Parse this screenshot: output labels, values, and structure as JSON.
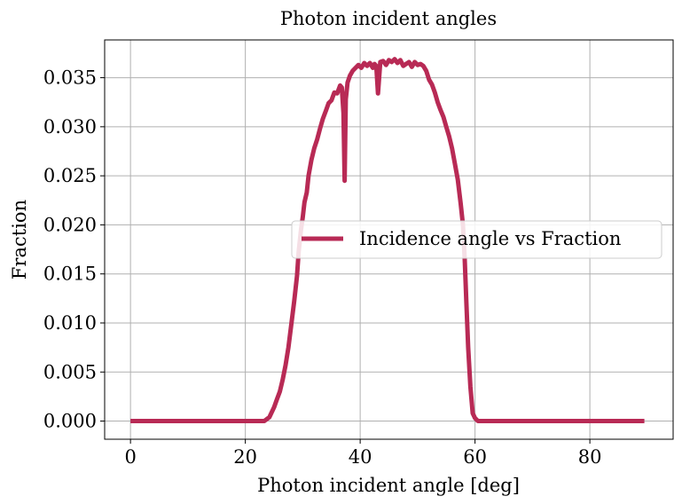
{
  "chart_data": {
    "type": "line",
    "title": "Photon incident angles",
    "xlabel": "Photon incident angle [deg]",
    "ylabel": "Fraction",
    "xlim": [
      -4.5,
      94.5
    ],
    "ylim": [
      -0.00185,
      0.03885
    ],
    "xticks": [
      0,
      20,
      40,
      60,
      80
    ],
    "xtick_labels": [
      "0",
      "20",
      "40",
      "60",
      "80"
    ],
    "yticks": [
      0,
      0.005,
      0.01,
      0.015,
      0.02,
      0.025,
      0.03,
      0.035
    ],
    "ytick_labels": [
      "0.000",
      "0.005",
      "0.010",
      "0.015",
      "0.020",
      "0.025",
      "0.030",
      "0.035"
    ],
    "grid": true,
    "legend_position": "center-right",
    "series": [
      {
        "name": "Incidence angle vs Fraction",
        "color": "#b82a55",
        "x": [
          0,
          5,
          10,
          15,
          20,
          23.3,
          24.2,
          24.6,
          25.0,
          25.5,
          26.0,
          26.5,
          27.0,
          27.5,
          28.0,
          28.5,
          29.0,
          29.3,
          29.7,
          30.0,
          30.3,
          30.7,
          31.0,
          31.5,
          32.0,
          32.5,
          33.0,
          33.5,
          34.0,
          34.5,
          35.0,
          35.5,
          36.0,
          36.5,
          36.8,
          37.1,
          37.3,
          37.5,
          37.8,
          38.2,
          38.7,
          39.2,
          39.7,
          40.2,
          40.7,
          41.2,
          41.7,
          42.2,
          42.5,
          42.8,
          43.1,
          43.5,
          44.0,
          44.5,
          45.0,
          45.5,
          46.0,
          46.5,
          47.0,
          47.5,
          48.0,
          48.5,
          49.0,
          49.5,
          50.0,
          50.5,
          51.0,
          51.5,
          52.0,
          52.5,
          53.0,
          53.5,
          54.0,
          54.5,
          55.0,
          55.5,
          56.0,
          56.5,
          57.0,
          57.5,
          57.9,
          58.2,
          58.5,
          58.8,
          59.2,
          59.6,
          60.0,
          60.5,
          65,
          70,
          75,
          80,
          85,
          89.5
        ],
        "y": [
          0,
          0,
          0,
          0,
          0,
          0,
          0.0004,
          0.0009,
          0.0014,
          0.0022,
          0.003,
          0.0042,
          0.0057,
          0.0075,
          0.0098,
          0.0122,
          0.0148,
          0.0173,
          0.0195,
          0.0208,
          0.0223,
          0.0233,
          0.025,
          0.0266,
          0.0278,
          0.0287,
          0.0298,
          0.0308,
          0.0316,
          0.0324,
          0.0327,
          0.0335,
          0.0334,
          0.0342,
          0.034,
          0.0314,
          0.0245,
          0.0328,
          0.0345,
          0.0352,
          0.0357,
          0.036,
          0.0363,
          0.036,
          0.0365,
          0.0362,
          0.0365,
          0.036,
          0.0364,
          0.0362,
          0.0334,
          0.0366,
          0.0367,
          0.0363,
          0.0368,
          0.0366,
          0.0369,
          0.0365,
          0.0368,
          0.0362,
          0.0364,
          0.0366,
          0.0361,
          0.0366,
          0.0363,
          0.0364,
          0.0362,
          0.0357,
          0.0348,
          0.0343,
          0.0335,
          0.0325,
          0.0317,
          0.031,
          0.03,
          0.029,
          0.0278,
          0.0262,
          0.0246,
          0.0222,
          0.02,
          0.0165,
          0.012,
          0.0075,
          0.0035,
          0.0008,
          0.0003,
          0,
          0,
          0,
          0,
          0,
          0,
          0
        ]
      }
    ]
  }
}
